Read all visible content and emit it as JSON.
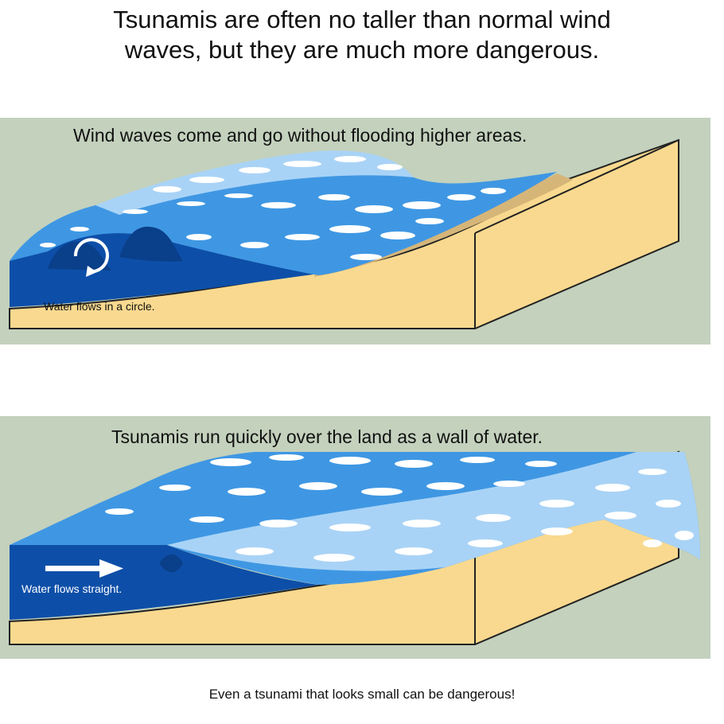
{
  "title": {
    "line1": "Tsunamis are often no taller than normal wind",
    "line2": "waves, but they are much more dangerous."
  },
  "panels": [
    {
      "heading": "Wind waves come and go without flooding higher areas.",
      "flow_label": "Water flows in a circle.",
      "flow_icon": "circular-arrow-icon"
    },
    {
      "heading": "Tsunamis run quickly over the land as a wall of water.",
      "flow_label": "Water flows straight.",
      "flow_icon": "straight-arrow-icon"
    }
  ],
  "footer": "Even a tsunami that looks small can be dangerous!",
  "colors": {
    "panel_bg": "#c3d1bd",
    "sand": "#f9d98f",
    "wet_sand": "#d6b578",
    "deep_water": "#0d4fa8",
    "water": "#3f97e3",
    "light_water": "#a9d3f6",
    "foam": "#ffffff",
    "outline": "#222222"
  }
}
